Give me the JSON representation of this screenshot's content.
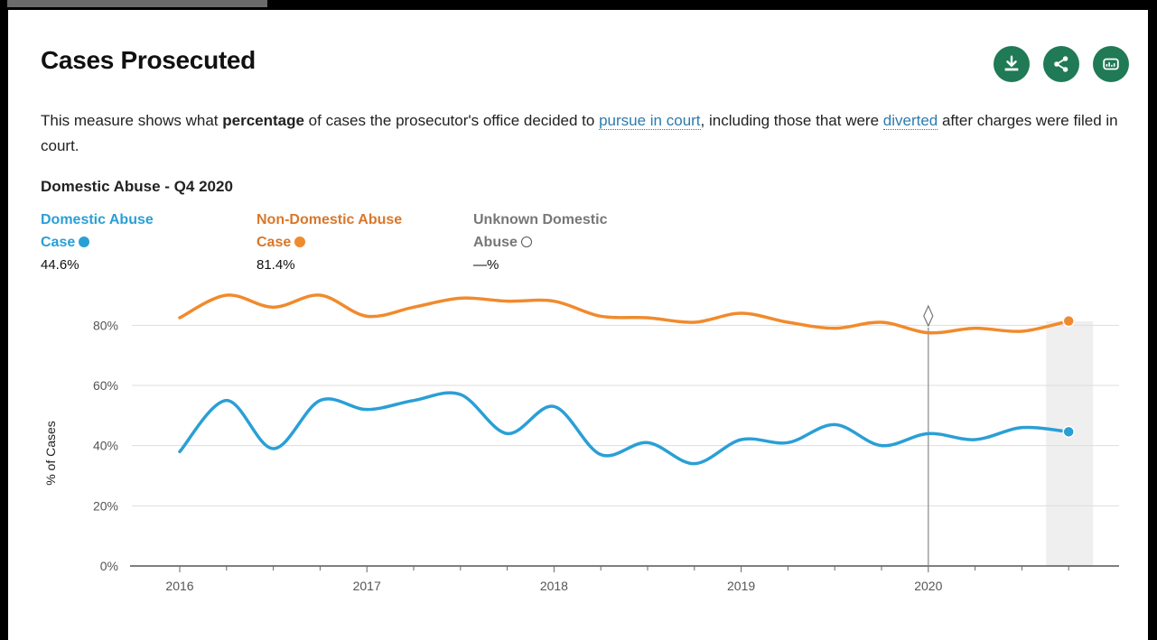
{
  "card": {
    "title": "Cases Prosecuted",
    "actions": [
      {
        "name": "download-icon"
      },
      {
        "name": "share-icon"
      },
      {
        "name": "data-icon"
      }
    ],
    "description": {
      "p1": "This measure shows what ",
      "bold": "percentage",
      "p2": " of cases the prosecutor's office decided to ",
      "link1": "pursue in court",
      "p3": ", including those that were ",
      "link2": "diverted",
      "p4": " after charges were filed in court."
    },
    "subtitle": "Domestic Abuse - Q4 2020"
  },
  "legend": [
    {
      "line1": "Domestic Abuse",
      "line2": "Case",
      "value": "44.6%",
      "color": "#2a9fd6"
    },
    {
      "line1": "Non-Domestic Abuse",
      "line2": "Case",
      "value": "81.4%",
      "color": "#f18a2c"
    },
    {
      "line1": "Unknown Domestic",
      "line2": "Abuse",
      "value": "—%",
      "color": "#888888"
    }
  ],
  "chart_data": {
    "type": "line",
    "ylabel": "% of Cases",
    "ylim": [
      0,
      90
    ],
    "yticks": [
      "0%",
      "20%",
      "40%",
      "60%",
      "80%"
    ],
    "xticks": [
      "2016",
      "2017",
      "2018",
      "2019",
      "2020"
    ],
    "x": [
      "2016 Q1",
      "2016 Q2",
      "2016 Q3",
      "2016 Q4",
      "2017 Q1",
      "2017 Q2",
      "2017 Q3",
      "2017 Q4",
      "2018 Q1",
      "2018 Q2",
      "2018 Q3",
      "2018 Q4",
      "2019 Q1",
      "2019 Q2",
      "2019 Q3",
      "2019 Q4",
      "2020 Q1",
      "2020 Q2",
      "2020 Q3",
      "2020 Q4"
    ],
    "series": [
      {
        "name": "Domestic Abuse Case",
        "color": "#2a9fd6",
        "values": [
          38,
          55,
          39,
          55,
          52,
          55,
          57,
          44,
          53,
          37,
          41,
          34,
          42,
          41,
          47,
          40,
          44,
          42,
          46,
          44.6
        ]
      },
      {
        "name": "Non-Domestic Abuse Case",
        "color": "#f18a2c",
        "values": [
          82.5,
          90,
          86,
          90,
          83,
          86,
          89,
          88,
          88,
          83,
          82.5,
          81,
          84,
          81,
          79,
          81,
          77.5,
          79,
          78,
          81.4
        ]
      }
    ],
    "marker_x": "2020 Q1",
    "highlight_x": "2020 Q4",
    "grid": true
  }
}
